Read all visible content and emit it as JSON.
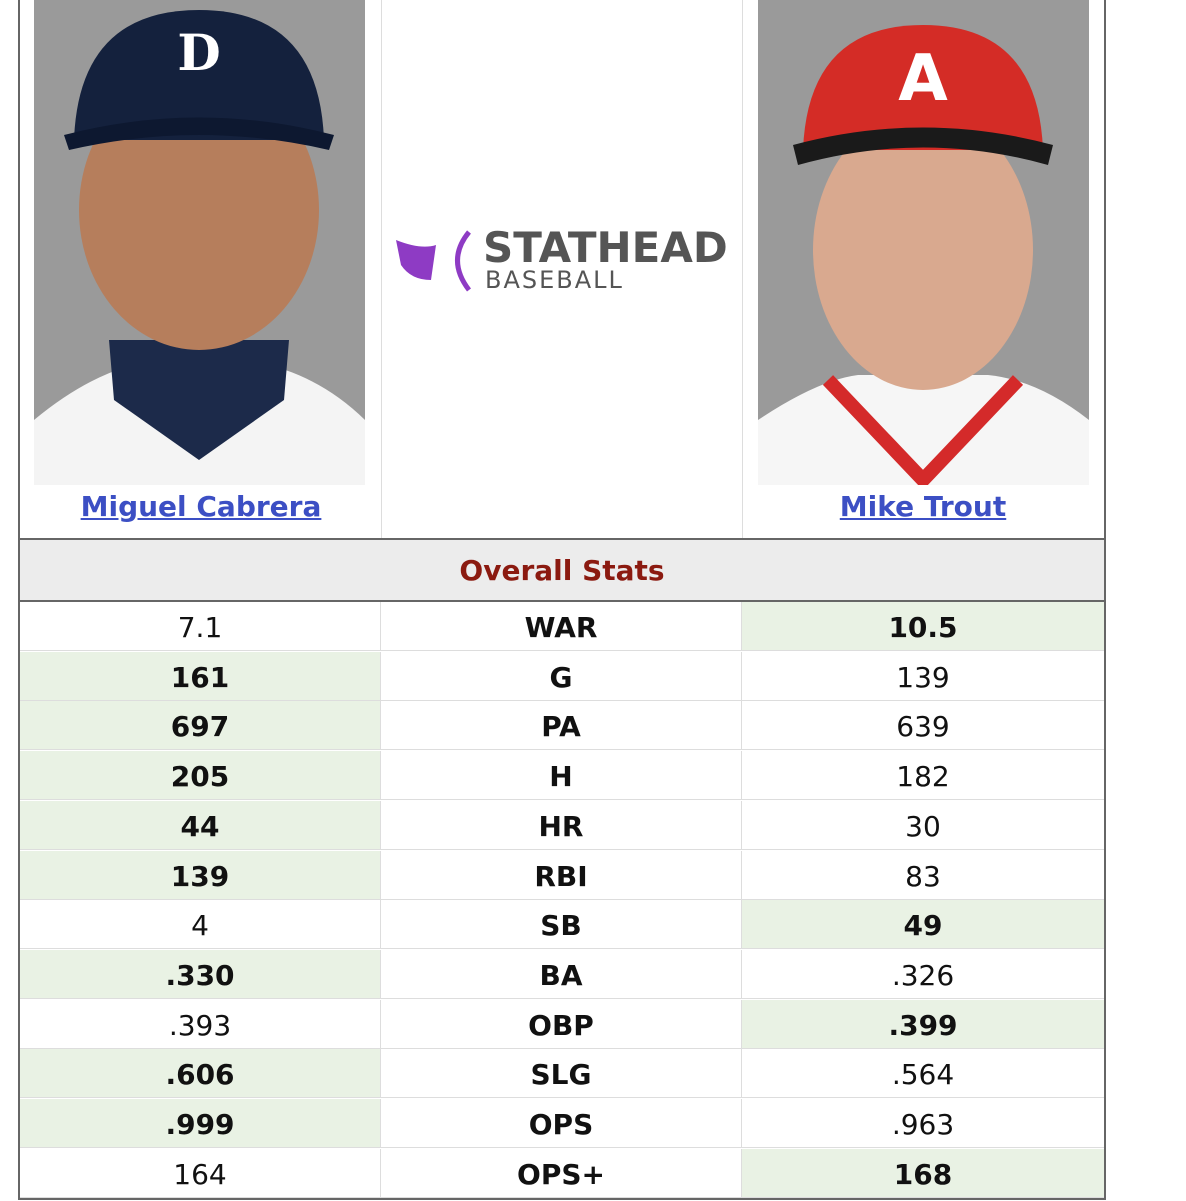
{
  "players": [
    {
      "name": "Miguel Cabrera"
    },
    {
      "name": "Mike Trout"
    }
  ],
  "logo": {
    "title": "STATHEAD",
    "subtitle": "BASEBALL"
  },
  "section_title": "Overall Stats",
  "rows": [
    {
      "stat": "WAR",
      "left": "7.1",
      "right": "10.5",
      "leader": "right"
    },
    {
      "stat": "G",
      "left": "161",
      "right": "139",
      "leader": "left"
    },
    {
      "stat": "PA",
      "left": "697",
      "right": "639",
      "leader": "left"
    },
    {
      "stat": "H",
      "left": "205",
      "right": "182",
      "leader": "left"
    },
    {
      "stat": "HR",
      "left": "44",
      "right": "30",
      "leader": "left"
    },
    {
      "stat": "RBI",
      "left": "139",
      "right": "83",
      "leader": "left"
    },
    {
      "stat": "SB",
      "left": "4",
      "right": "49",
      "leader": "right"
    },
    {
      "stat": "BA",
      "left": ".330",
      "right": ".326",
      "leader": "left"
    },
    {
      "stat": "OBP",
      "left": ".393",
      "right": ".399",
      "leader": "right"
    },
    {
      "stat": "SLG",
      "left": ".606",
      "right": ".564",
      "leader": "left"
    },
    {
      "stat": "OPS",
      "left": ".999",
      "right": ".963",
      "leader": "left"
    },
    {
      "stat": "OPS+",
      "left": "164",
      "right": "168",
      "leader": "right"
    }
  ]
}
